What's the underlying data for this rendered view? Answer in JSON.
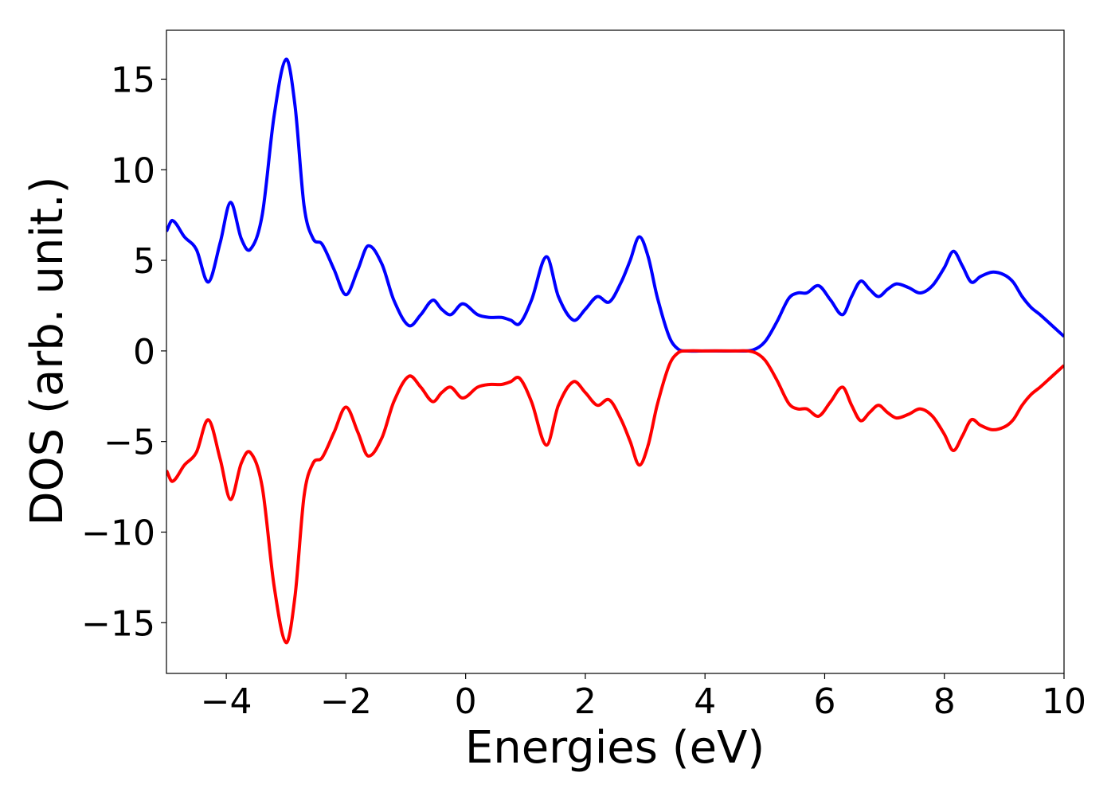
{
  "chart_data": {
    "type": "line",
    "xlabel": "Energies (eV)",
    "ylabel": "DOS (arb. unit.)",
    "xlim": [
      -5,
      10
    ],
    "ylim": [
      -17.8,
      17.7
    ],
    "xticks": [
      {
        "value": -4,
        "label": "−4"
      },
      {
        "value": -2,
        "label": "−2"
      },
      0,
      2,
      4,
      6,
      8,
      10
    ],
    "yticks": [
      {
        "value": -15,
        "label": "−15"
      },
      {
        "value": -10,
        "label": "−10"
      },
      {
        "value": -5,
        "label": "−5"
      },
      0,
      5,
      10,
      15
    ],
    "grid": false,
    "x": [
      -5,
      -4.9,
      -4.7,
      -4.5,
      -4.3,
      -4.1,
      -3.93,
      -3.75,
      -3.6,
      -3.4,
      -3.2,
      -3.0,
      -2.85,
      -2.7,
      -2.55,
      -2.4,
      -2.2,
      -2.0,
      -1.8,
      -1.63,
      -1.4,
      -1.2,
      -0.95,
      -0.75,
      -0.55,
      -0.4,
      -0.25,
      -0.05,
      0.2,
      0.4,
      0.6,
      0.75,
      0.9,
      1.1,
      1.35,
      1.55,
      1.8,
      2.0,
      2.2,
      2.4,
      2.6,
      2.75,
      2.9,
      3.05,
      3.2,
      3.4,
      3.55,
      3.7,
      4.0,
      4.5,
      4.8,
      5.0,
      5.2,
      5.4,
      5.55,
      5.7,
      5.9,
      6.1,
      6.3,
      6.45,
      6.6,
      6.75,
      6.9,
      7.05,
      7.2,
      7.4,
      7.6,
      7.8,
      8.0,
      8.15,
      8.3,
      8.45,
      8.6,
      8.8,
      9.0,
      9.15,
      9.3,
      9.45,
      9.6,
      9.8,
      10
    ],
    "series": [
      {
        "color": "#0000ff",
        "values": [
          6.6,
          7.2,
          6.3,
          5.6,
          3.8,
          6.0,
          8.2,
          6.2,
          5.6,
          7.5,
          13,
          16.1,
          13.5,
          8,
          6.2,
          5.9,
          4.5,
          3.1,
          4.5,
          5.8,
          4.8,
          2.8,
          1.4,
          2.0,
          2.8,
          2.3,
          2.0,
          2.6,
          2.0,
          1.85,
          1.85,
          1.7,
          1.5,
          2.8,
          5.2,
          3.0,
          1.7,
          2.3,
          3.0,
          2.7,
          3.8,
          5.0,
          6.3,
          5.2,
          3.0,
          0.8,
          0.1,
          0,
          0,
          0,
          0.05,
          0.5,
          1.6,
          2.9,
          3.2,
          3.2,
          3.6,
          2.8,
          2.0,
          3.0,
          3.85,
          3.4,
          3.0,
          3.4,
          3.7,
          3.5,
          3.2,
          3.6,
          4.6,
          5.5,
          4.7,
          3.8,
          4.1,
          4.35,
          4.2,
          3.8,
          3.0,
          2.4,
          2.0,
          1.4,
          0.8
        ]
      },
      {
        "color": "#ff0000",
        "values": [
          -6.6,
          -7.2,
          -6.3,
          -5.6,
          -3.8,
          -6.0,
          -8.2,
          -6.2,
          -5.6,
          -7.5,
          -13,
          -16.1,
          -13.5,
          -8,
          -6.2,
          -5.9,
          -4.5,
          -3.1,
          -4.5,
          -5.8,
          -4.8,
          -2.8,
          -1.4,
          -2.0,
          -2.8,
          -2.3,
          -2.0,
          -2.6,
          -2.0,
          -1.85,
          -1.85,
          -1.7,
          -1.5,
          -2.8,
          -5.2,
          -3.0,
          -1.7,
          -2.3,
          -3.0,
          -2.7,
          -3.8,
          -5.0,
          -6.3,
          -5.2,
          -3.0,
          -0.8,
          -0.1,
          0,
          0,
          0,
          -0.05,
          -0.5,
          -1.6,
          -2.9,
          -3.2,
          -3.2,
          -3.6,
          -2.8,
          -2.0,
          -3.0,
          -3.85,
          -3.4,
          -3.0,
          -3.4,
          -3.7,
          -3.5,
          -3.2,
          -3.6,
          -4.6,
          -5.5,
          -4.7,
          -3.8,
          -4.1,
          -4.35,
          -4.2,
          -3.8,
          -3.0,
          -2.4,
          -2.0,
          -1.4,
          -0.8
        ]
      }
    ]
  }
}
